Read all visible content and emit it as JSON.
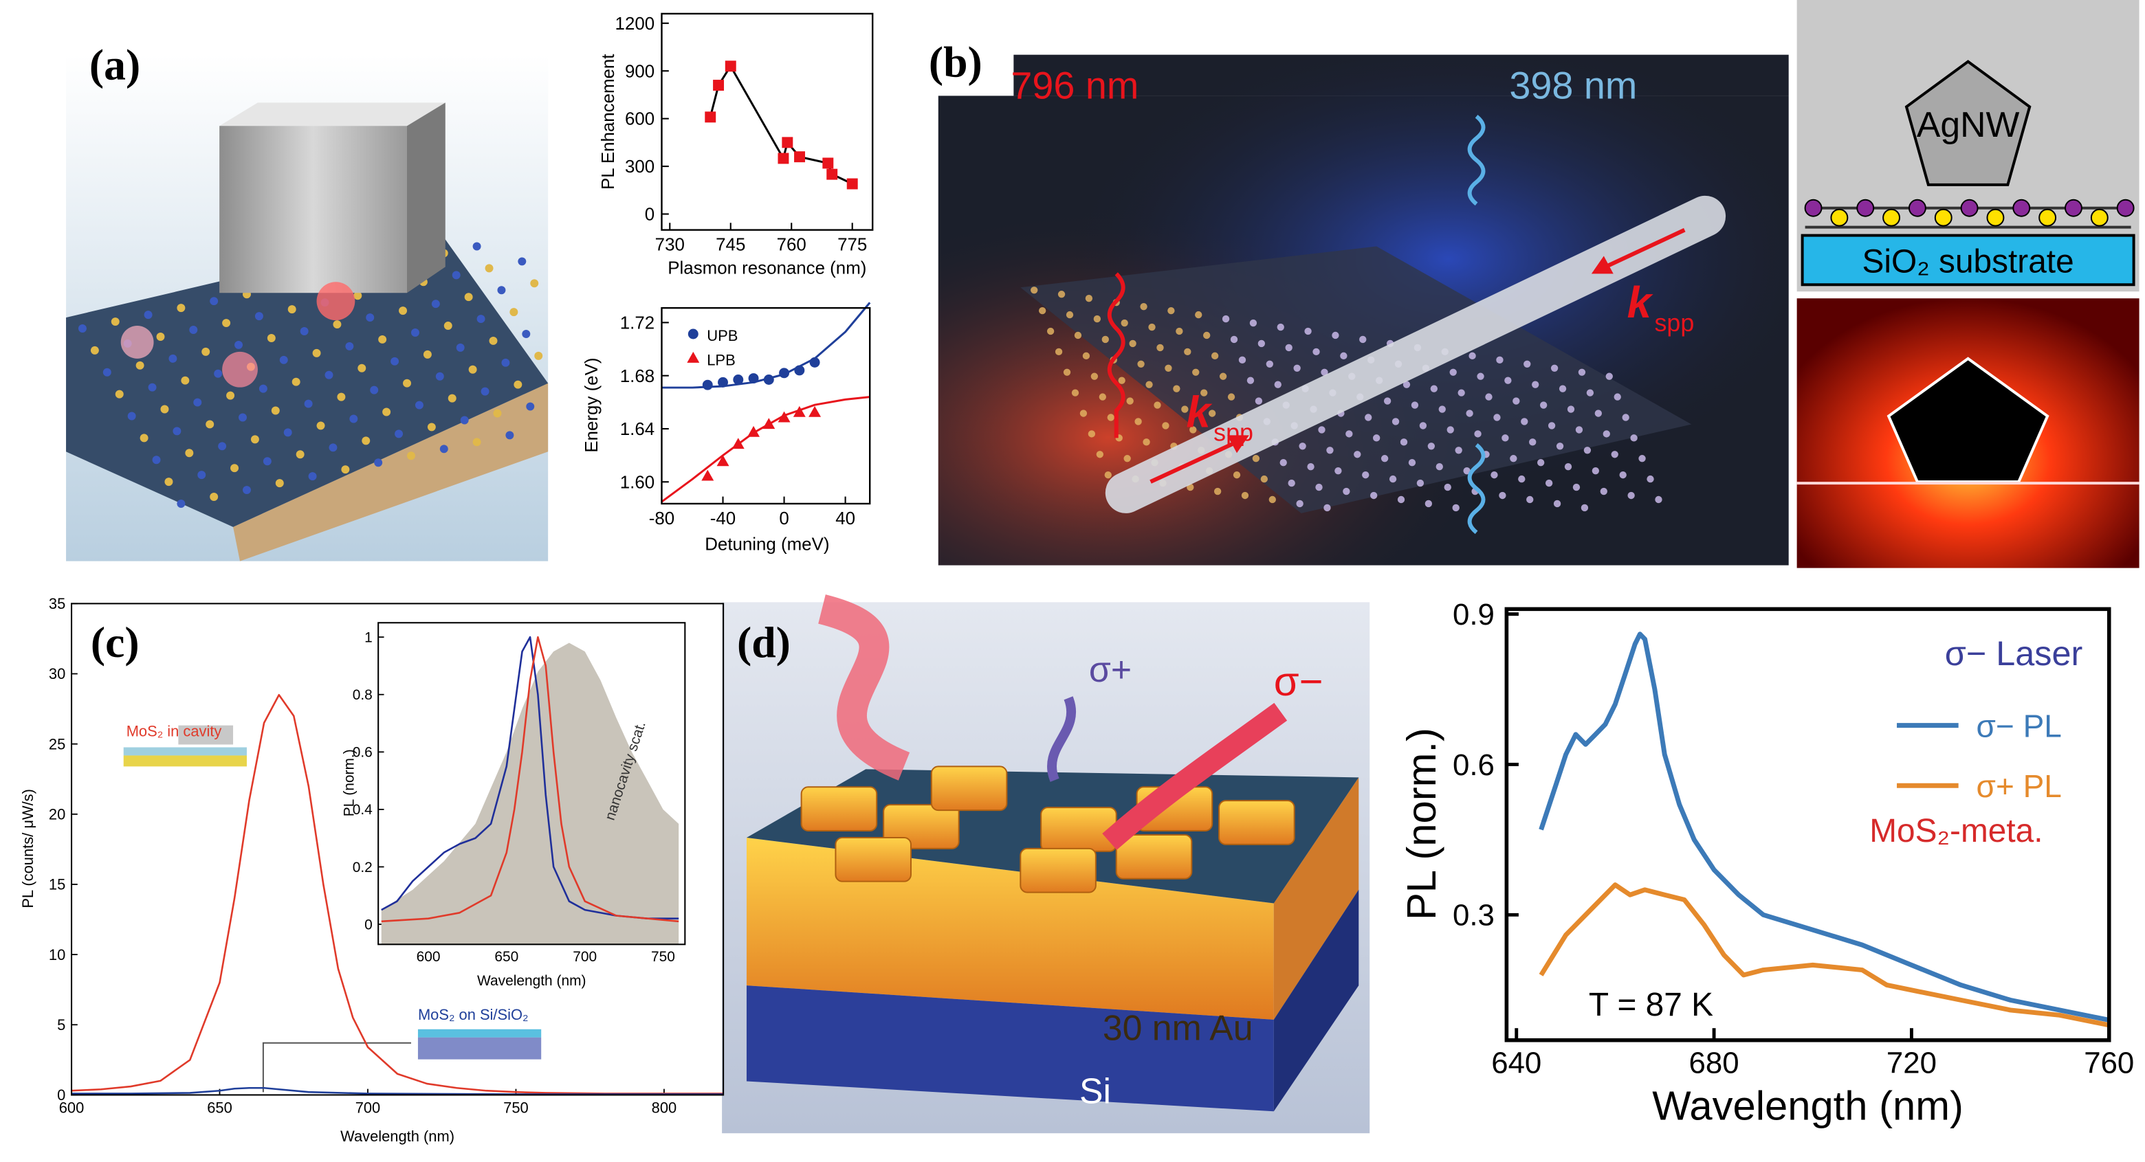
{
  "panel_labels": [
    "(a)",
    "(b)",
    "(c)",
    "(d)"
  ],
  "illustration_b": {
    "pump": "796 nm",
    "emission": "398 nm",
    "wave_vectors": [
      {
        "symbol": "k",
        "subscript": "spp"
      },
      {
        "symbol": "k",
        "subscript": "spp"
      }
    ],
    "cross_section": {
      "wire": "AgNW",
      "substrate": "SiO₂ substrate"
    }
  },
  "illustration_d": {
    "emission_left": "σ+",
    "emission_right": "σ−",
    "layer_au": "30 nm Au",
    "layer_si": "Si"
  },
  "chart_data": [
    {
      "type": "line",
      "xlabel": "Plasmon resonance (nm)",
      "ylabel": "PL Enhancement",
      "xlim": [
        728,
        780
      ],
      "xticks": [
        730,
        745,
        760,
        775
      ],
      "ylim": [
        -100,
        1260
      ],
      "yticks": [
        0,
        300,
        600,
        900,
        1200
      ],
      "series": [
        {
          "color": "#000000",
          "marker_color": "#e8141c",
          "marker": "square",
          "line": true,
          "x": [
            740,
            742,
            745,
            758,
            759,
            762,
            769,
            770,
            775
          ],
          "values": [
            610,
            810,
            930,
            350,
            450,
            360,
            320,
            250,
            190
          ]
        }
      ]
    },
    {
      "type": "line",
      "xlabel": "Detuning (meV)",
      "ylabel": "Energy (eV)",
      "legend": "upper left",
      "xlim": [
        -80,
        56
      ],
      "xticks": [
        -80,
        -40,
        0,
        40
      ],
      "ylim": [
        1.5836,
        1.731
      ],
      "yticks": [
        {
          "value": 1.6,
          "label": "1.60"
        },
        {
          "value": 1.64,
          "label": "1.64"
        },
        {
          "value": 1.68,
          "label": "1.68"
        },
        {
          "value": 1.72,
          "label": "1.72"
        }
      ],
      "series": [
        {
          "name": "UPB",
          "color": "#1f3f9a",
          "marker": "circle",
          "line": false,
          "x": [
            -50,
            -40,
            -30,
            -20,
            -10,
            0,
            10,
            20
          ],
          "values": [
            1.673,
            1.675,
            1.677,
            1.678,
            1.677,
            1.682,
            1.684,
            1.69
          ]
        },
        {
          "name": "LPB",
          "color": "#e8141c",
          "marker": "triangle",
          "line": false,
          "x": [
            -50,
            -40,
            -30,
            -20,
            -10,
            0,
            10,
            20
          ],
          "values": [
            1.604,
            1.615,
            1.628,
            1.637,
            1.643,
            1.648,
            1.652,
            1.652
          ]
        },
        {
          "color": "#1f3f9a",
          "line": true,
          "x": [
            -80,
            -60,
            -40,
            -20,
            0,
            20,
            40,
            56
          ],
          "values": [
            1.671,
            1.671,
            1.672,
            1.675,
            1.681,
            1.693,
            1.713,
            1.735
          ]
        },
        {
          "color": "#e8141c",
          "line": true,
          "x": [
            -80,
            -60,
            -40,
            -20,
            0,
            20,
            40,
            56
          ],
          "values": [
            1.585,
            1.602,
            1.62,
            1.637,
            1.65,
            1.658,
            1.662,
            1.664
          ]
        }
      ]
    },
    {
      "type": "line",
      "xlabel": "Wavelength (nm)",
      "ylabel": "PL (counts/ μW/s)",
      "xlim": [
        600,
        820
      ],
      "xticks": [
        600,
        650,
        700,
        750,
        800
      ],
      "ylim": [
        0,
        35
      ],
      "yticks": [
        0,
        5,
        10,
        15,
        20,
        25,
        30,
        35
      ],
      "annotations": [
        "MoS₂ in cavity",
        "MoS₂ on Si/SiO₂"
      ],
      "series": [
        {
          "color": "#e03a2a",
          "line": true,
          "x": [
            600,
            610,
            620,
            630,
            640,
            650,
            655,
            660,
            665,
            670,
            675,
            680,
            685,
            690,
            695,
            700,
            710,
            720,
            730,
            740,
            750,
            760,
            780,
            800,
            820
          ],
          "values": [
            0.3,
            0.4,
            0.6,
            1.0,
            2.5,
            8,
            14,
            21,
            26.5,
            28.5,
            27,
            22,
            15,
            9,
            5.5,
            3.4,
            1.5,
            0.8,
            0.5,
            0.3,
            0.2,
            0.15,
            0.1,
            0.1,
            0.1
          ]
        },
        {
          "color": "#1f3f9a",
          "line": true,
          "x": [
            600,
            620,
            640,
            650,
            655,
            660,
            665,
            670,
            680,
            700,
            750,
            820
          ],
          "values": [
            0.1,
            0.1,
            0.15,
            0.3,
            0.45,
            0.5,
            0.5,
            0.4,
            0.2,
            0.1,
            0.05,
            0.05
          ]
        }
      ]
    },
    {
      "type": "line",
      "xlabel": "Wavelength (nm)",
      "ylabel": "PL (norm.)",
      "xlim": [
        568,
        764
      ],
      "xticks": [
        600,
        650,
        700,
        750
      ],
      "ylim": [
        -0.07,
        1.05
      ],
      "yticks": [
        0,
        0.2,
        0.4,
        0.6,
        0.8,
        1
      ],
      "annotations": [
        "nanocavity scat."
      ],
      "series": [
        {
          "color": "#c9c4ba",
          "fill": true,
          "line": false,
          "x": [
            570,
            590,
            610,
            630,
            650,
            660,
            670,
            680,
            690,
            700,
            710,
            720,
            730,
            740,
            750,
            760
          ],
          "values": [
            0.05,
            0.12,
            0.22,
            0.35,
            0.6,
            0.75,
            0.88,
            0.95,
            0.98,
            0.95,
            0.85,
            0.72,
            0.6,
            0.5,
            0.4,
            0.35
          ]
        },
        {
          "color": "#1f2f9a",
          "line": true,
          "x": [
            570,
            580,
            590,
            600,
            610,
            620,
            630,
            640,
            650,
            655,
            660,
            665,
            670,
            675,
            680,
            690,
            700,
            720,
            740,
            760
          ],
          "values": [
            0.05,
            0.08,
            0.15,
            0.2,
            0.25,
            0.28,
            0.3,
            0.35,
            0.55,
            0.75,
            0.95,
            1.0,
            0.8,
            0.45,
            0.2,
            0.08,
            0.05,
            0.03,
            0.02,
            0.02
          ]
        },
        {
          "color": "#e03a2a",
          "line": true,
          "x": [
            570,
            600,
            620,
            640,
            650,
            655,
            660,
            665,
            670,
            675,
            680,
            685,
            690,
            700,
            720,
            760
          ],
          "values": [
            0.01,
            0.02,
            0.04,
            0.1,
            0.25,
            0.4,
            0.6,
            0.85,
            1.0,
            0.9,
            0.6,
            0.35,
            0.2,
            0.08,
            0.03,
            0.01
          ]
        }
      ]
    },
    {
      "type": "line",
      "xlabel": "Wavelength (nm)",
      "ylabel": "PL (norm.)",
      "legend": "upper right",
      "legend_title": "σ− Laser",
      "xlim": [
        638,
        760
      ],
      "xticks": [
        640,
        680,
        720,
        760
      ],
      "ylim": [
        0.05,
        0.91
      ],
      "yticks": [
        0.3,
        0.6,
        0.9
      ],
      "annotations": [
        "MoS₂-meta.",
        "T = 87 K"
      ],
      "series": [
        {
          "name": "σ− PL",
          "color": "#3c7ab8",
          "line": true,
          "x": [
            645,
            648,
            650,
            652,
            654,
            656,
            658,
            660,
            662,
            664,
            665,
            666,
            668,
            670,
            673,
            676,
            680,
            685,
            690,
            700,
            710,
            720,
            730,
            740,
            750,
            760
          ],
          "values": [
            0.47,
            0.56,
            0.62,
            0.66,
            0.64,
            0.66,
            0.68,
            0.72,
            0.78,
            0.84,
            0.86,
            0.85,
            0.75,
            0.62,
            0.52,
            0.45,
            0.39,
            0.34,
            0.3,
            0.27,
            0.24,
            0.2,
            0.16,
            0.13,
            0.11,
            0.09
          ]
        },
        {
          "name": "σ+ PL",
          "color": "#e58a2c",
          "line": true,
          "x": [
            645,
            650,
            655,
            660,
            663,
            666,
            670,
            674,
            678,
            682,
            686,
            690,
            700,
            710,
            715,
            720,
            730,
            740,
            750,
            760
          ],
          "values": [
            0.18,
            0.26,
            0.31,
            0.36,
            0.34,
            0.35,
            0.34,
            0.33,
            0.28,
            0.22,
            0.18,
            0.19,
            0.2,
            0.19,
            0.16,
            0.15,
            0.13,
            0.11,
            0.1,
            0.08
          ]
        }
      ]
    }
  ]
}
